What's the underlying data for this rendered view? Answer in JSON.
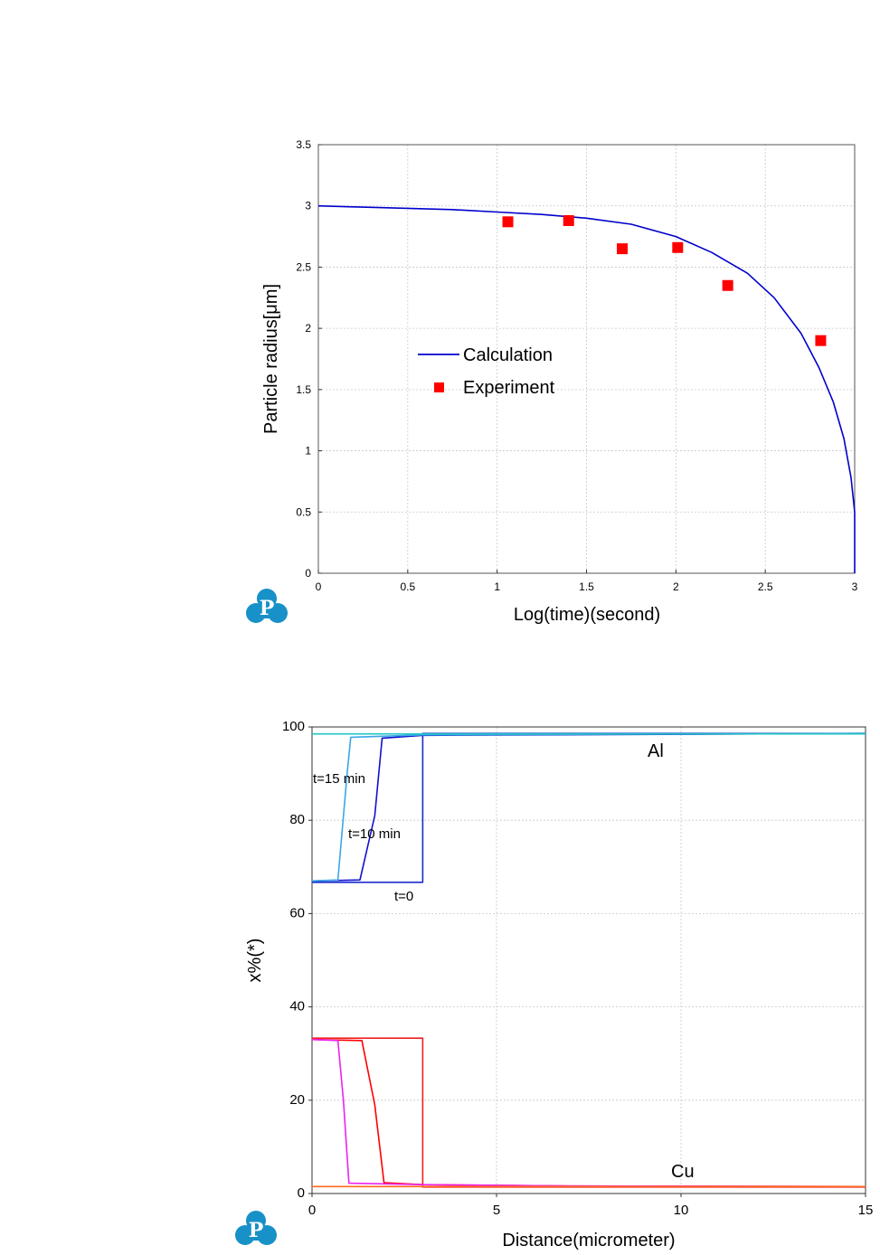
{
  "chart_data": [
    {
      "type": "line",
      "xlabel": "Log(time)(second)",
      "ylabel": "Particle radius[μm]",
      "xlim": [
        0,
        3
      ],
      "ylim": [
        0,
        3.5
      ],
      "xticks": [
        "0",
        "0.5",
        "1",
        "1.5",
        "2",
        "2.5",
        "3"
      ],
      "yticks": [
        "0",
        "0.5",
        "1",
        "1.5",
        "2",
        "2.5",
        "3",
        "3.5"
      ],
      "grid": true,
      "legend_position": "center-left",
      "series": [
        {
          "name": "Calculation",
          "kind": "line",
          "color": "#0000cc",
          "x": [
            0,
            0.25,
            0.5,
            0.75,
            1.0,
            1.25,
            1.5,
            1.75,
            2.0,
            2.2,
            2.4,
            2.55,
            2.7,
            2.8,
            2.88,
            2.94,
            2.98,
            3.0,
            3.0
          ],
          "y": [
            3.0,
            2.99,
            2.98,
            2.97,
            2.95,
            2.93,
            2.9,
            2.85,
            2.75,
            2.62,
            2.45,
            2.25,
            1.96,
            1.68,
            1.4,
            1.1,
            0.78,
            0.5,
            0.0
          ]
        },
        {
          "name": "Experiment",
          "kind": "scatter",
          "color": "#ff0000",
          "x": [
            1.06,
            1.4,
            1.7,
            2.01,
            2.29,
            2.81
          ],
          "y": [
            2.87,
            2.88,
            2.65,
            2.66,
            2.35,
            1.9
          ]
        }
      ]
    },
    {
      "type": "line",
      "xlabel": "Distance(micrometer)",
      "ylabel": "x%(*)",
      "xlim": [
        0,
        15
      ],
      "ylim": [
        0,
        100
      ],
      "xticks": [
        "0",
        "5",
        "10",
        "15"
      ],
      "yticks": [
        "0",
        "20",
        "40",
        "60",
        "80",
        "100"
      ],
      "grid": true,
      "annotations": [
        "Al",
        "Cu",
        "t=15 min",
        "t=10 min",
        "t=0"
      ],
      "series": [
        {
          "color": "#1a2bcc",
          "x": [
            0,
            3,
            3,
            15
          ],
          "y": [
            66.7,
            66.7,
            98.6,
            98.6
          ]
        },
        {
          "color": "#1010d0",
          "x": [
            0,
            1.3,
            1.7,
            1.9,
            3,
            15
          ],
          "y": [
            67,
            67.2,
            81,
            97.6,
            98.2,
            98.6
          ]
        },
        {
          "color": "#3ba6e6",
          "x": [
            0,
            0.7,
            0.95,
            1.05,
            3,
            15
          ],
          "y": [
            67,
            67.2,
            90,
            97.8,
            98.3,
            98.6
          ]
        },
        {
          "color": "#20c4c4",
          "x": [
            0,
            15
          ],
          "y": [
            98.5,
            98.5
          ]
        },
        {
          "color": "#ee2020",
          "x": [
            0,
            3,
            3,
            15
          ],
          "y": [
            33.3,
            33.3,
            1.4,
            1.4
          ]
        },
        {
          "color": "#ff0000",
          "x": [
            0,
            1.35,
            1.7,
            1.95,
            3,
            7,
            15
          ],
          "y": [
            33,
            32.8,
            19,
            2.3,
            1.9,
            1.6,
            1.5
          ]
        },
        {
          "color": "#ee22ee",
          "x": [
            0,
            0.7,
            0.85,
            1.0,
            3,
            7,
            15
          ],
          "y": [
            33,
            32.8,
            20,
            2.2,
            1.9,
            1.6,
            1.5
          ]
        },
        {
          "color": "#ff6a1a",
          "x": [
            0,
            15
          ],
          "y": [
            1.5,
            1.5
          ]
        }
      ]
    }
  ]
}
